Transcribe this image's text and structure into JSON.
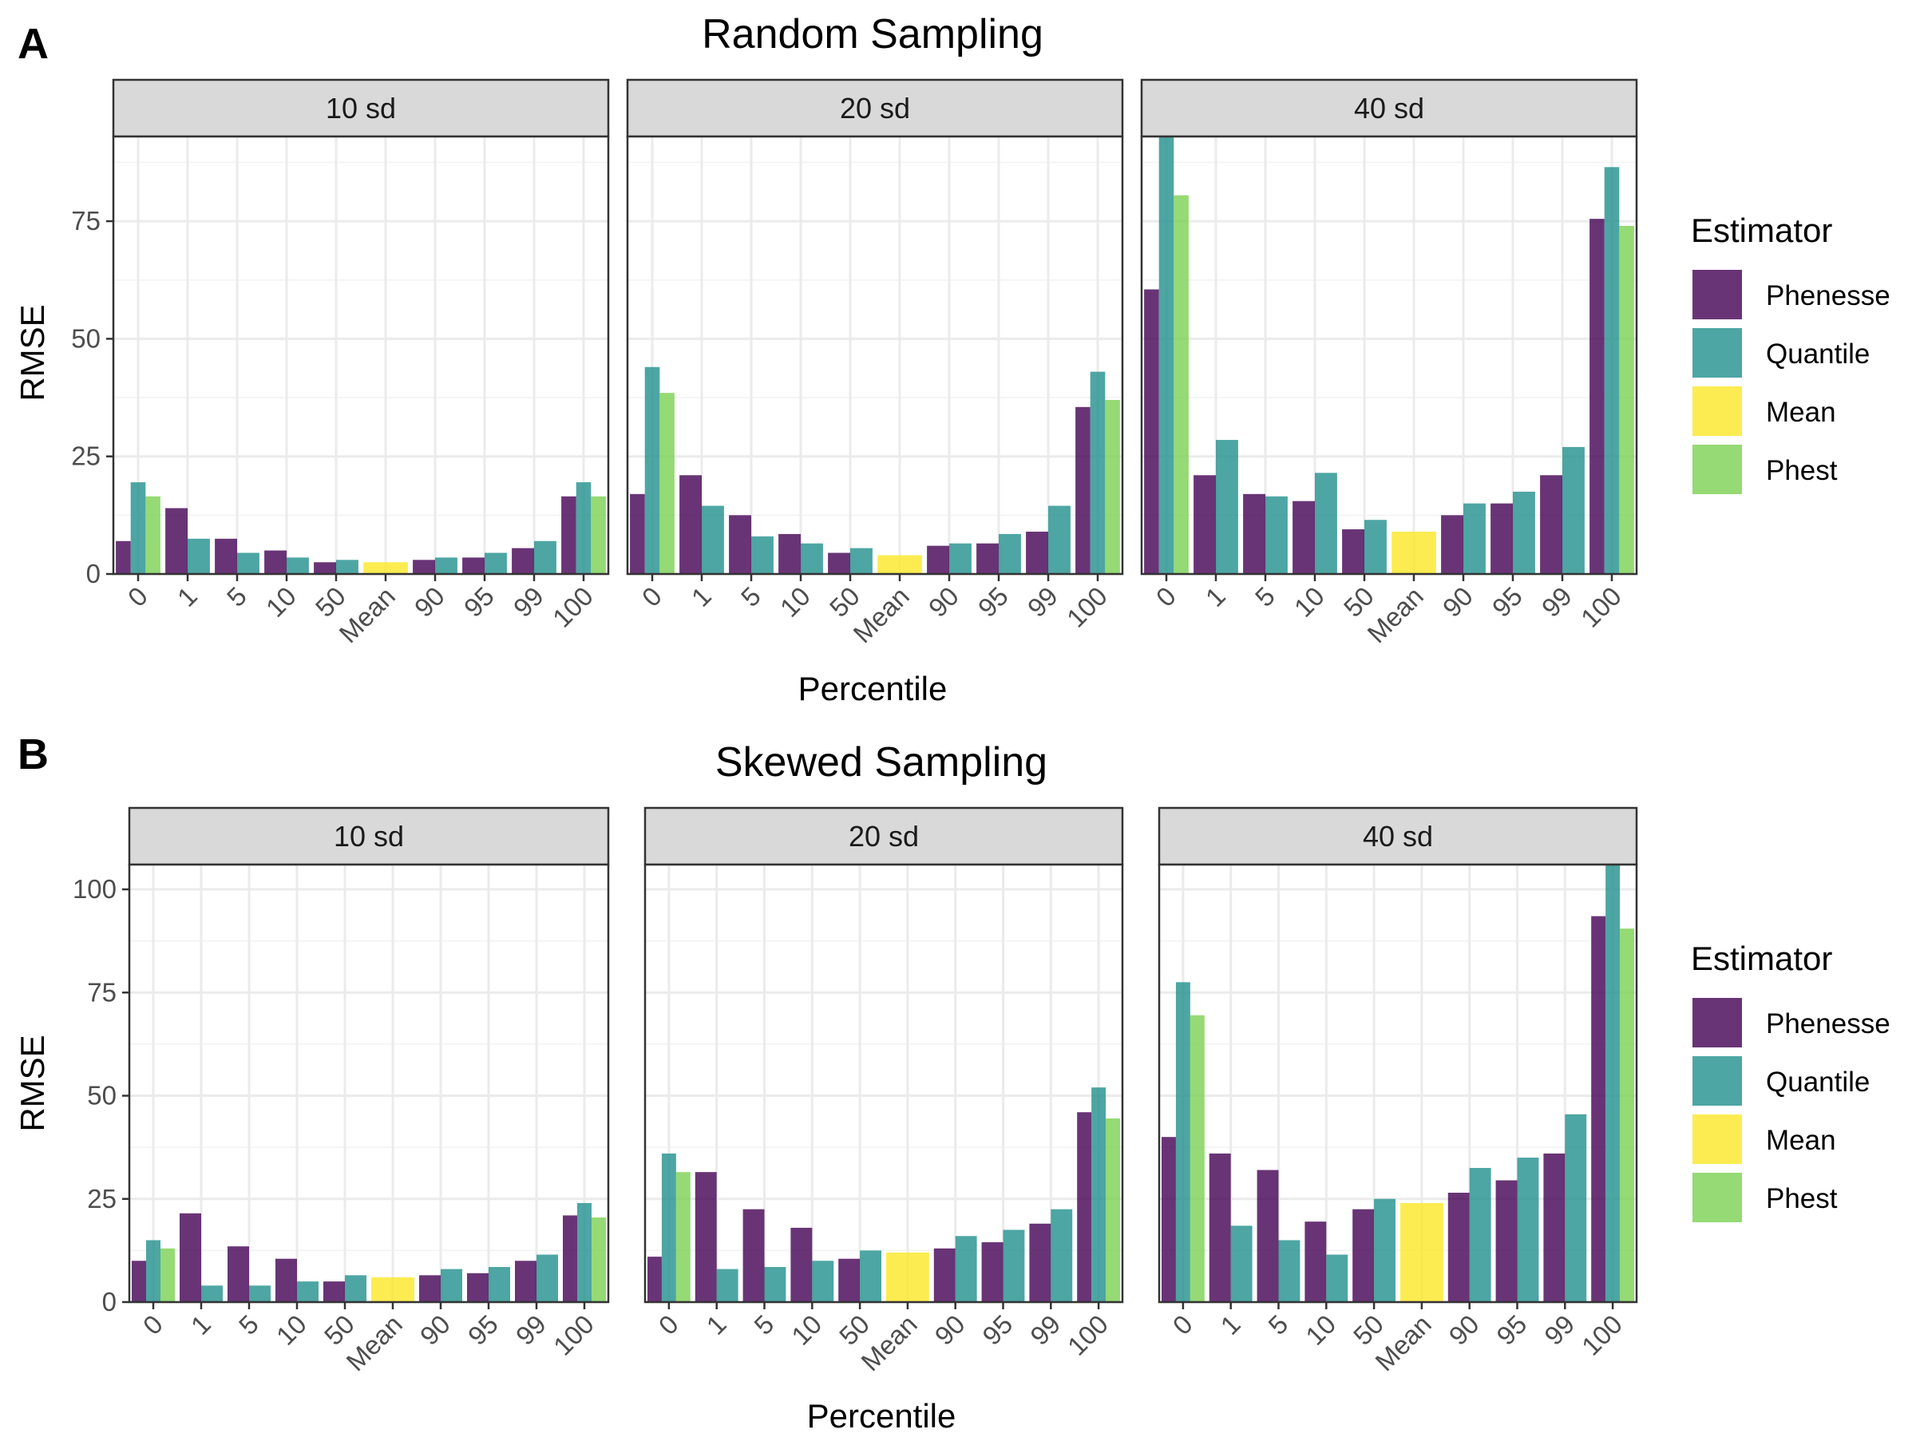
{
  "estimators": [
    {
      "name": "Phenesse",
      "color": "#440154"
    },
    {
      "name": "Quantile",
      "color": "#21908C"
    },
    {
      "name": "Mean",
      "color": "#FDE725"
    },
    {
      "name": "Phest",
      "color": "#7AD151"
    }
  ],
  "legend_title": "Estimator",
  "chart_data": [
    {
      "type": "bar",
      "panel_letter": "A",
      "title": "Random Sampling",
      "xlabel": "Percentile",
      "ylabel": "RMSE",
      "ylim": [
        0,
        93
      ],
      "yticks": [
        0,
        25,
        50,
        75
      ],
      "grid": true,
      "legend_position": "right",
      "categories": [
        "0",
        "1",
        "5",
        "10",
        "50",
        "Mean",
        "90",
        "95",
        "99",
        "100"
      ],
      "facets": [
        {
          "label": "10 sd",
          "bars": [
            {
              "cat": "0",
              "values": {
                "Phenesse": 7,
                "Quantile": 19.5,
                "Phest": 16.5
              }
            },
            {
              "cat": "1",
              "values": {
                "Phenesse": 14,
                "Quantile": 7.5
              }
            },
            {
              "cat": "5",
              "values": {
                "Phenesse": 7.5,
                "Quantile": 4.5
              }
            },
            {
              "cat": "10",
              "values": {
                "Phenesse": 5,
                "Quantile": 3.5
              }
            },
            {
              "cat": "50",
              "values": {
                "Phenesse": 2.5,
                "Quantile": 3
              }
            },
            {
              "cat": "Mean",
              "values": {
                "Mean": 2.5
              }
            },
            {
              "cat": "90",
              "values": {
                "Phenesse": 3,
                "Quantile": 3.5
              }
            },
            {
              "cat": "95",
              "values": {
                "Phenesse": 3.5,
                "Quantile": 4.5
              }
            },
            {
              "cat": "99",
              "values": {
                "Phenesse": 5.5,
                "Quantile": 7
              }
            },
            {
              "cat": "100",
              "values": {
                "Phenesse": 16.5,
                "Quantile": 19.5,
                "Phest": 16.5
              }
            }
          ]
        },
        {
          "label": "20 sd",
          "bars": [
            {
              "cat": "0",
              "values": {
                "Phenesse": 17,
                "Quantile": 44,
                "Phest": 38.5
              }
            },
            {
              "cat": "1",
              "values": {
                "Phenesse": 21,
                "Quantile": 14.5
              }
            },
            {
              "cat": "5",
              "values": {
                "Phenesse": 12.5,
                "Quantile": 8
              }
            },
            {
              "cat": "10",
              "values": {
                "Phenesse": 8.5,
                "Quantile": 6.5
              }
            },
            {
              "cat": "50",
              "values": {
                "Phenesse": 4.5,
                "Quantile": 5.5
              }
            },
            {
              "cat": "Mean",
              "values": {
                "Mean": 4
              }
            },
            {
              "cat": "90",
              "values": {
                "Phenesse": 6,
                "Quantile": 6.5
              }
            },
            {
              "cat": "95",
              "values": {
                "Phenesse": 6.5,
                "Quantile": 8.5
              }
            },
            {
              "cat": "99",
              "values": {
                "Phenesse": 9,
                "Quantile": 14.5
              }
            },
            {
              "cat": "100",
              "values": {
                "Phenesse": 35.5,
                "Quantile": 43,
                "Phest": 37
              }
            }
          ]
        },
        {
          "label": "40 sd",
          "bars": [
            {
              "cat": "0",
              "values": {
                "Phenesse": 60.5,
                "Quantile": 93,
                "Phest": 80.5
              }
            },
            {
              "cat": "1",
              "values": {
                "Phenesse": 21,
                "Quantile": 28.5
              }
            },
            {
              "cat": "5",
              "values": {
                "Phenesse": 17,
                "Quantile": 16.5
              }
            },
            {
              "cat": "10",
              "values": {
                "Phenesse": 15.5,
                "Quantile": 21.5
              }
            },
            {
              "cat": "50",
              "values": {
                "Phenesse": 9.5,
                "Quantile": 11.5
              }
            },
            {
              "cat": "Mean",
              "values": {
                "Mean": 9
              }
            },
            {
              "cat": "90",
              "values": {
                "Phenesse": 12.5,
                "Quantile": 15
              }
            },
            {
              "cat": "95",
              "values": {
                "Phenesse": 15,
                "Quantile": 17.5
              }
            },
            {
              "cat": "99",
              "values": {
                "Phenesse": 21,
                "Quantile": 27
              }
            },
            {
              "cat": "100",
              "values": {
                "Phenesse": 75.5,
                "Quantile": 86.5,
                "Phest": 74
              }
            }
          ]
        }
      ]
    },
    {
      "type": "bar",
      "panel_letter": "B",
      "title": "Skewed Sampling",
      "xlabel": "Percentile",
      "ylabel": "RMSE",
      "ylim": [
        0,
        106
      ],
      "yticks": [
        0,
        25,
        50,
        75,
        100
      ],
      "grid": true,
      "legend_position": "right",
      "categories": [
        "0",
        "1",
        "5",
        "10",
        "50",
        "Mean",
        "90",
        "95",
        "99",
        "100"
      ],
      "facets": [
        {
          "label": "10 sd",
          "bars": [
            {
              "cat": "0",
              "values": {
                "Phenesse": 10,
                "Quantile": 15,
                "Phest": 13
              }
            },
            {
              "cat": "1",
              "values": {
                "Phenesse": 21.5,
                "Quantile": 4
              }
            },
            {
              "cat": "5",
              "values": {
                "Phenesse": 13.5,
                "Quantile": 4
              }
            },
            {
              "cat": "10",
              "values": {
                "Phenesse": 10.5,
                "Quantile": 5
              }
            },
            {
              "cat": "50",
              "values": {
                "Phenesse": 5,
                "Quantile": 6.5
              }
            },
            {
              "cat": "Mean",
              "values": {
                "Mean": 6
              }
            },
            {
              "cat": "90",
              "values": {
                "Phenesse": 6.5,
                "Quantile": 8
              }
            },
            {
              "cat": "95",
              "values": {
                "Phenesse": 7,
                "Quantile": 8.5
              }
            },
            {
              "cat": "99",
              "values": {
                "Phenesse": 10,
                "Quantile": 11.5
              }
            },
            {
              "cat": "100",
              "values": {
                "Phenesse": 21,
                "Quantile": 24,
                "Phest": 20.5
              }
            }
          ]
        },
        {
          "label": "20 sd",
          "bars": [
            {
              "cat": "0",
              "values": {
                "Phenesse": 11,
                "Quantile": 36,
                "Phest": 31.5
              }
            },
            {
              "cat": "1",
              "values": {
                "Phenesse": 31.5,
                "Quantile": 8
              }
            },
            {
              "cat": "5",
              "values": {
                "Phenesse": 22.5,
                "Quantile": 8.5
              }
            },
            {
              "cat": "10",
              "values": {
                "Phenesse": 18,
                "Quantile": 10
              }
            },
            {
              "cat": "50",
              "values": {
                "Phenesse": 10.5,
                "Quantile": 12.5
              }
            },
            {
              "cat": "Mean",
              "values": {
                "Mean": 12
              }
            },
            {
              "cat": "90",
              "values": {
                "Phenesse": 13,
                "Quantile": 16
              }
            },
            {
              "cat": "95",
              "values": {
                "Phenesse": 14.5,
                "Quantile": 17.5
              }
            },
            {
              "cat": "99",
              "values": {
                "Phenesse": 19,
                "Quantile": 22.5
              }
            },
            {
              "cat": "100",
              "values": {
                "Phenesse": 46,
                "Quantile": 52,
                "Phest": 44.5
              }
            }
          ]
        },
        {
          "label": "40 sd",
          "bars": [
            {
              "cat": "0",
              "values": {
                "Phenesse": 40,
                "Quantile": 77.5,
                "Phest": 69.5
              }
            },
            {
              "cat": "1",
              "values": {
                "Phenesse": 36,
                "Quantile": 18.5
              }
            },
            {
              "cat": "5",
              "values": {
                "Phenesse": 32,
                "Quantile": 15
              }
            },
            {
              "cat": "10",
              "values": {
                "Phenesse": 19.5,
                "Quantile": 11.5
              }
            },
            {
              "cat": "50",
              "values": {
                "Phenesse": 22.5,
                "Quantile": 25
              }
            },
            {
              "cat": "Mean",
              "values": {
                "Mean": 24
              }
            },
            {
              "cat": "90",
              "values": {
                "Phenesse": 26.5,
                "Quantile": 32.5
              }
            },
            {
              "cat": "95",
              "values": {
                "Phenesse": 29.5,
                "Quantile": 35
              }
            },
            {
              "cat": "99",
              "values": {
                "Phenesse": 36,
                "Quantile": 45.5
              }
            },
            {
              "cat": "100",
              "values": {
                "Phenesse": 93.5,
                "Quantile": 106,
                "Phest": 90.5
              }
            }
          ]
        }
      ]
    }
  ]
}
